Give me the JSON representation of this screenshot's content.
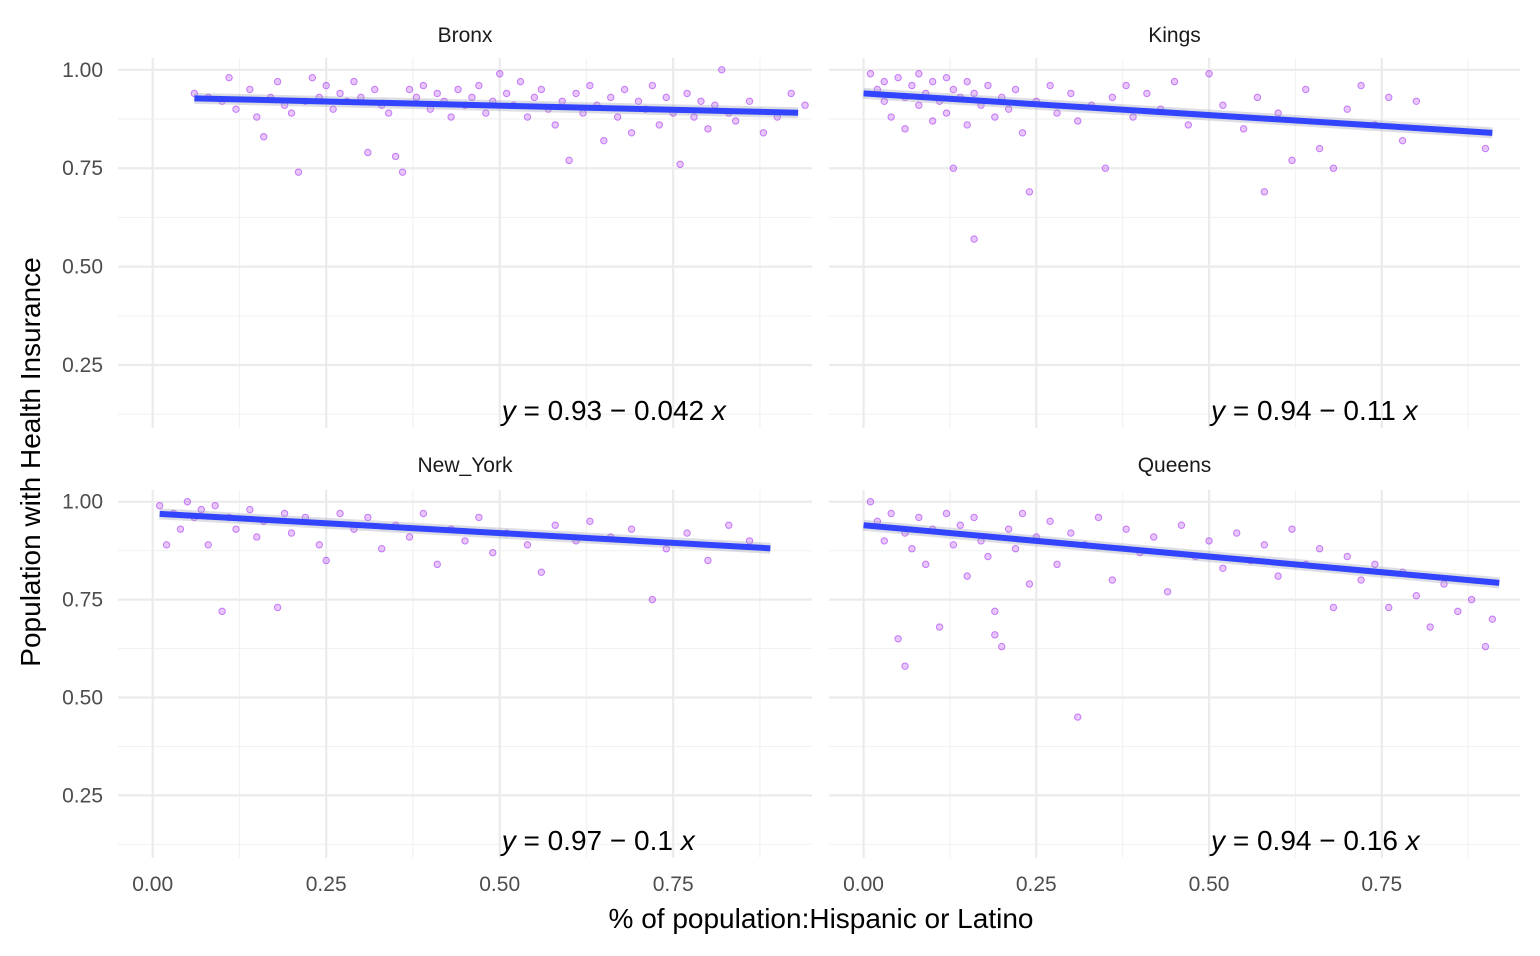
{
  "chart_data": {
    "type": "scatter",
    "xlabel": "% of population:Hispanic or Latino",
    "ylabel": "Population with Health Insurance",
    "xlim": [
      -0.05,
      0.95
    ],
    "ylim": [
      0.09,
      1.03
    ],
    "x_ticks": [
      "0.00",
      "0.25",
      "0.50",
      "0.75"
    ],
    "x_tick_values": [
      0,
      0.25,
      0.5,
      0.75
    ],
    "y_ticks": [
      "0.25",
      "0.50",
      "0.75",
      "1.00"
    ],
    "y_tick_values": [
      0.25,
      0.5,
      0.75,
      1.0
    ],
    "grid": true,
    "facet_layout": "2x2",
    "colors": {
      "points": "#A020F0",
      "fit_line": "#3344FF",
      "grid": "#EBEBEB"
    },
    "panels": [
      {
        "name": "Bronx",
        "equation": "y = 0.93 − 0.042 x",
        "fit": {
          "intercept": 0.93,
          "slope": -0.042,
          "x_range": [
            0.06,
            0.93
          ]
        },
        "points": [
          [
            0.06,
            0.94
          ],
          [
            0.08,
            0.93
          ],
          [
            0.1,
            0.92
          ],
          [
            0.11,
            0.98
          ],
          [
            0.12,
            0.9
          ],
          [
            0.14,
            0.95
          ],
          [
            0.15,
            0.88
          ],
          [
            0.16,
            0.83
          ],
          [
            0.17,
            0.93
          ],
          [
            0.18,
            0.97
          ],
          [
            0.19,
            0.91
          ],
          [
            0.2,
            0.89
          ],
          [
            0.21,
            0.74
          ],
          [
            0.22,
            0.92
          ],
          [
            0.23,
            0.98
          ],
          [
            0.24,
            0.93
          ],
          [
            0.25,
            0.96
          ],
          [
            0.26,
            0.9
          ],
          [
            0.27,
            0.94
          ],
          [
            0.28,
            0.92
          ],
          [
            0.29,
            0.97
          ],
          [
            0.3,
            0.93
          ],
          [
            0.31,
            0.79
          ],
          [
            0.32,
            0.95
          ],
          [
            0.33,
            0.91
          ],
          [
            0.34,
            0.89
          ],
          [
            0.35,
            0.78
          ],
          [
            0.36,
            0.74
          ],
          [
            0.37,
            0.95
          ],
          [
            0.38,
            0.93
          ],
          [
            0.39,
            0.96
          ],
          [
            0.4,
            0.9
          ],
          [
            0.41,
            0.94
          ],
          [
            0.42,
            0.92
          ],
          [
            0.43,
            0.88
          ],
          [
            0.44,
            0.95
          ],
          [
            0.45,
            0.91
          ],
          [
            0.46,
            0.93
          ],
          [
            0.47,
            0.96
          ],
          [
            0.48,
            0.89
          ],
          [
            0.49,
            0.92
          ],
          [
            0.5,
            0.99
          ],
          [
            0.51,
            0.94
          ],
          [
            0.52,
            0.91
          ],
          [
            0.53,
            0.97
          ],
          [
            0.54,
            0.88
          ],
          [
            0.55,
            0.93
          ],
          [
            0.56,
            0.95
          ],
          [
            0.57,
            0.9
          ],
          [
            0.58,
            0.86
          ],
          [
            0.59,
            0.92
          ],
          [
            0.6,
            0.77
          ],
          [
            0.61,
            0.94
          ],
          [
            0.62,
            0.89
          ],
          [
            0.63,
            0.96
          ],
          [
            0.64,
            0.91
          ],
          [
            0.65,
            0.82
          ],
          [
            0.66,
            0.93
          ],
          [
            0.67,
            0.88
          ],
          [
            0.68,
            0.95
          ],
          [
            0.69,
            0.84
          ],
          [
            0.7,
            0.92
          ],
          [
            0.71,
            0.9
          ],
          [
            0.72,
            0.96
          ],
          [
            0.73,
            0.86
          ],
          [
            0.74,
            0.93
          ],
          [
            0.75,
            0.89
          ],
          [
            0.76,
            0.76
          ],
          [
            0.77,
            0.94
          ],
          [
            0.78,
            0.88
          ],
          [
            0.79,
            0.92
          ],
          [
            0.8,
            0.85
          ],
          [
            0.81,
            0.91
          ],
          [
            0.82,
            1.0
          ],
          [
            0.83,
            0.89
          ],
          [
            0.84,
            0.87
          ],
          [
            0.86,
            0.92
          ],
          [
            0.88,
            0.84
          ],
          [
            0.9,
            0.88
          ],
          [
            0.92,
            0.94
          ],
          [
            0.94,
            0.91
          ]
        ]
      },
      {
        "name": "Kings",
        "equation": "y = 0.94 − 0.11 x",
        "fit": {
          "intercept": 0.94,
          "slope": -0.11,
          "x_range": [
            0.0,
            0.91
          ]
        },
        "points": [
          [
            0.01,
            0.99
          ],
          [
            0.02,
            0.95
          ],
          [
            0.03,
            0.92
          ],
          [
            0.03,
            0.97
          ],
          [
            0.04,
            0.88
          ],
          [
            0.05,
            0.98
          ],
          [
            0.06,
            0.93
          ],
          [
            0.06,
            0.85
          ],
          [
            0.07,
            0.96
          ],
          [
            0.08,
            0.91
          ],
          [
            0.08,
            0.99
          ],
          [
            0.09,
            0.94
          ],
          [
            0.1,
            0.87
          ],
          [
            0.1,
            0.97
          ],
          [
            0.11,
            0.92
          ],
          [
            0.12,
            0.98
          ],
          [
            0.12,
            0.89
          ],
          [
            0.13,
            0.95
          ],
          [
            0.13,
            0.75
          ],
          [
            0.14,
            0.93
          ],
          [
            0.15,
            0.97
          ],
          [
            0.15,
            0.86
          ],
          [
            0.16,
            0.57
          ],
          [
            0.16,
            0.94
          ],
          [
            0.17,
            0.91
          ],
          [
            0.18,
            0.96
          ],
          [
            0.19,
            0.88
          ],
          [
            0.2,
            0.93
          ],
          [
            0.21,
            0.9
          ],
          [
            0.22,
            0.95
          ],
          [
            0.23,
            0.84
          ],
          [
            0.24,
            0.69
          ],
          [
            0.25,
            0.92
          ],
          [
            0.27,
            0.96
          ],
          [
            0.28,
            0.89
          ],
          [
            0.3,
            0.94
          ],
          [
            0.31,
            0.87
          ],
          [
            0.33,
            0.91
          ],
          [
            0.35,
            0.75
          ],
          [
            0.36,
            0.93
          ],
          [
            0.38,
            0.96
          ],
          [
            0.39,
            0.88
          ],
          [
            0.41,
            0.94
          ],
          [
            0.43,
            0.9
          ],
          [
            0.45,
            0.97
          ],
          [
            0.47,
            0.86
          ],
          [
            0.5,
            0.99
          ],
          [
            0.52,
            0.91
          ],
          [
            0.55,
            0.85
          ],
          [
            0.57,
            0.93
          ],
          [
            0.58,
            0.69
          ],
          [
            0.6,
            0.89
          ],
          [
            0.62,
            0.77
          ],
          [
            0.64,
            0.95
          ],
          [
            0.66,
            0.8
          ],
          [
            0.68,
            0.75
          ],
          [
            0.7,
            0.9
          ],
          [
            0.72,
            0.96
          ],
          [
            0.74,
            0.86
          ],
          [
            0.76,
            0.93
          ],
          [
            0.78,
            0.82
          ],
          [
            0.8,
            0.92
          ],
          [
            0.9,
            0.8
          ]
        ]
      },
      {
        "name": "New_York",
        "equation": "y = 0.97 − 0.1 x",
        "fit": {
          "intercept": 0.97,
          "slope": -0.1,
          "x_range": [
            0.01,
            0.89
          ]
        },
        "points": [
          [
            0.01,
            0.99
          ],
          [
            0.02,
            0.89
          ],
          [
            0.03,
            0.97
          ],
          [
            0.04,
            0.93
          ],
          [
            0.05,
            1.0
          ],
          [
            0.06,
            0.96
          ],
          [
            0.07,
            0.98
          ],
          [
            0.08,
            0.89
          ],
          [
            0.09,
            0.99
          ],
          [
            0.1,
            0.72
          ],
          [
            0.11,
            0.96
          ],
          [
            0.12,
            0.93
          ],
          [
            0.14,
            0.98
          ],
          [
            0.15,
            0.91
          ],
          [
            0.16,
            0.95
          ],
          [
            0.18,
            0.73
          ],
          [
            0.19,
            0.97
          ],
          [
            0.2,
            0.92
          ],
          [
            0.22,
            0.96
          ],
          [
            0.24,
            0.89
          ],
          [
            0.25,
            0.85
          ],
          [
            0.27,
            0.97
          ],
          [
            0.29,
            0.93
          ],
          [
            0.31,
            0.96
          ],
          [
            0.33,
            0.88
          ],
          [
            0.35,
            0.94
          ],
          [
            0.37,
            0.91
          ],
          [
            0.39,
            0.97
          ],
          [
            0.41,
            0.84
          ],
          [
            0.43,
            0.93
          ],
          [
            0.45,
            0.9
          ],
          [
            0.47,
            0.96
          ],
          [
            0.49,
            0.87
          ],
          [
            0.51,
            0.92
          ],
          [
            0.54,
            0.89
          ],
          [
            0.56,
            0.82
          ],
          [
            0.58,
            0.94
          ],
          [
            0.61,
            0.9
          ],
          [
            0.63,
            0.95
          ],
          [
            0.66,
            0.91
          ],
          [
            0.69,
            0.93
          ],
          [
            0.72,
            0.75
          ],
          [
            0.74,
            0.88
          ],
          [
            0.77,
            0.92
          ],
          [
            0.8,
            0.85
          ],
          [
            0.83,
            0.94
          ],
          [
            0.86,
            0.9
          ]
        ]
      },
      {
        "name": "Queens",
        "equation": "y = 0.94 − 0.16 x",
        "fit": {
          "intercept": 0.94,
          "slope": -0.16,
          "x_range": [
            0.0,
            0.92
          ]
        },
        "points": [
          [
            0.01,
            1.0
          ],
          [
            0.02,
            0.95
          ],
          [
            0.03,
            0.9
          ],
          [
            0.04,
            0.97
          ],
          [
            0.05,
            0.65
          ],
          [
            0.06,
            0.58
          ],
          [
            0.06,
            0.92
          ],
          [
            0.07,
            0.88
          ],
          [
            0.08,
            0.96
          ],
          [
            0.09,
            0.84
          ],
          [
            0.1,
            0.93
          ],
          [
            0.11,
            0.68
          ],
          [
            0.12,
            0.97
          ],
          [
            0.13,
            0.89
          ],
          [
            0.14,
            0.94
          ],
          [
            0.15,
            0.81
          ],
          [
            0.16,
            0.96
          ],
          [
            0.17,
            0.9
          ],
          [
            0.18,
            0.86
          ],
          [
            0.19,
            0.72
          ],
          [
            0.19,
            0.66
          ],
          [
            0.2,
            0.63
          ],
          [
            0.21,
            0.93
          ],
          [
            0.22,
            0.88
          ],
          [
            0.23,
            0.97
          ],
          [
            0.24,
            0.79
          ],
          [
            0.25,
            0.91
          ],
          [
            0.27,
            0.95
          ],
          [
            0.28,
            0.84
          ],
          [
            0.3,
            0.92
          ],
          [
            0.31,
            0.45
          ],
          [
            0.32,
            0.89
          ],
          [
            0.34,
            0.96
          ],
          [
            0.36,
            0.8
          ],
          [
            0.38,
            0.93
          ],
          [
            0.4,
            0.87
          ],
          [
            0.42,
            0.91
          ],
          [
            0.44,
            0.77
          ],
          [
            0.46,
            0.94
          ],
          [
            0.48,
            0.86
          ],
          [
            0.5,
            0.9
          ],
          [
            0.52,
            0.83
          ],
          [
            0.54,
            0.92
          ],
          [
            0.56,
            0.85
          ],
          [
            0.58,
            0.89
          ],
          [
            0.6,
            0.81
          ],
          [
            0.62,
            0.93
          ],
          [
            0.64,
            0.84
          ],
          [
            0.66,
            0.88
          ],
          [
            0.68,
            0.73
          ],
          [
            0.7,
            0.86
          ],
          [
            0.72,
            0.8
          ],
          [
            0.74,
            0.84
          ],
          [
            0.76,
            0.73
          ],
          [
            0.78,
            0.82
          ],
          [
            0.8,
            0.76
          ],
          [
            0.82,
            0.68
          ],
          [
            0.84,
            0.79
          ],
          [
            0.86,
            0.72
          ],
          [
            0.88,
            0.75
          ],
          [
            0.9,
            0.63
          ],
          [
            0.91,
            0.7
          ]
        ]
      }
    ]
  }
}
